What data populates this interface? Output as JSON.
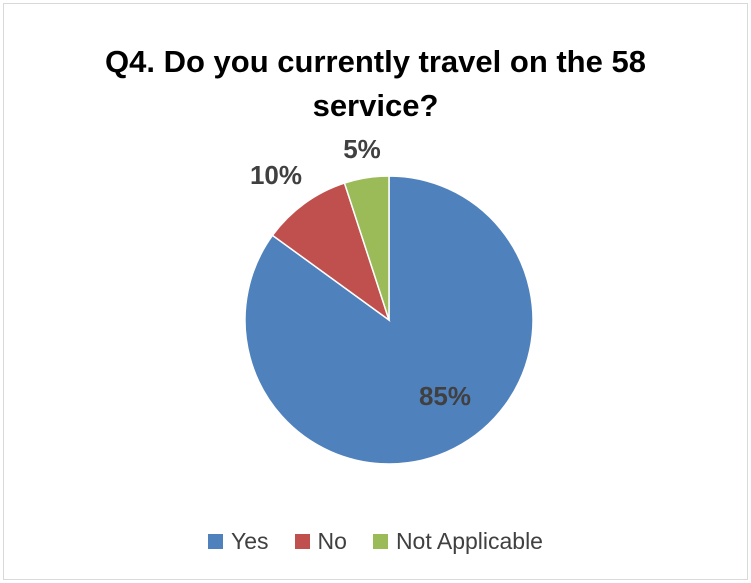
{
  "chart_data": {
    "type": "pie",
    "title": "Q4. Do you currently travel on the 58 service?",
    "title_lines": [
      "Q4. Do you currently travel on the 58",
      "service?"
    ],
    "slices": [
      {
        "label": "Yes",
        "value": 85,
        "display": "85%",
        "color": "#4F81BD"
      },
      {
        "label": "No",
        "value": 10,
        "display": "10%",
        "color": "#C0504D"
      },
      {
        "label": "Not Applicable",
        "value": 5,
        "display": "5%",
        "color": "#9BBB59"
      }
    ],
    "start_angle": "12 o'clock",
    "direction": "clockwise",
    "legend_position": "bottom",
    "data_label_color": "#404040"
  }
}
